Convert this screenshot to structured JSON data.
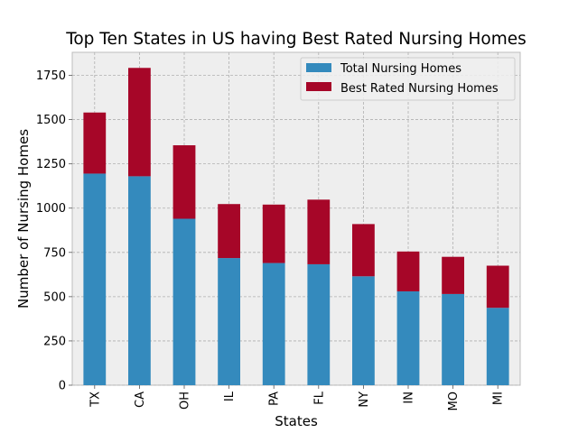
{
  "chart_data": {
    "type": "bar",
    "stacked": true,
    "title": "Top Ten States in US having Best Rated Nursing Homes",
    "xlabel": "States",
    "ylabel": "Number of Nursing Homes",
    "categories": [
      "TX",
      "CA",
      "OH",
      "IL",
      "PA",
      "FL",
      "NY",
      "IN",
      "MO",
      "MI"
    ],
    "series": [
      {
        "name": "Total Nursing Homes",
        "color": "#348abd",
        "values": [
          1195,
          1180,
          940,
          718,
          690,
          683,
          615,
          530,
          515,
          437
        ]
      },
      {
        "name": "Best Rated Nursing Homes",
        "color": "#a60628",
        "values": [
          345,
          612,
          415,
          305,
          330,
          365,
          295,
          225,
          210,
          238
        ]
      }
    ],
    "ylim": [
      0,
      1880
    ],
    "yticks": [
      0,
      250,
      500,
      750,
      1000,
      1250,
      1500,
      1750
    ],
    "grid": true,
    "legend_position": "top-right"
  }
}
